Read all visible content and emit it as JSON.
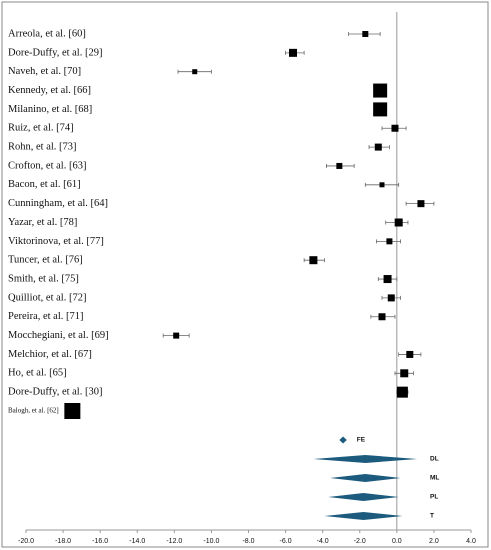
{
  "chart_data": {
    "type": "forest",
    "categories": [
      "Arreola, et al. [60]",
      "Dore-Duffy, et al. [29]",
      "Naveh, et al. [70]",
      "Kennedy, et al. [66]",
      "Milanino, et al. [68]",
      "Ruiz, et al. [74]",
      "Rohn, et al. [73]",
      "Crofton, et al. [63]",
      "Bacon, et al. [61]",
      "Cunningham, et al. [64]",
      "Yazar, et al. [78]",
      "Viktorinova, et al. [77]",
      "Tuncer, et al. [76]",
      "Smith, et al. [75]",
      "Quilliot, et al. [72]",
      "Pereira, et al. [71]",
      "Mocchegiani, et al. [69]",
      "Melchior, et al. [67]",
      "Ho, et al. [65]",
      "Dore-Duffy, et al. [30]",
      "Balogh, et al. [62]"
    ],
    "values": [
      -1.7,
      -5.6,
      -10.9,
      -0.9,
      -0.9,
      -0.1,
      -1.0,
      -3.1,
      -0.8,
      1.3,
      0.1,
      -0.4,
      -4.5,
      -0.5,
      -0.3,
      -0.8,
      -11.9,
      0.7,
      0.4,
      0.3,
      -17.5
    ],
    "lower": [
      -2.6,
      -6.0,
      -11.8,
      -1.2,
      -1.2,
      -0.8,
      -1.5,
      -3.8,
      -1.7,
      0.5,
      -0.6,
      -1.1,
      -5.0,
      -1.0,
      -0.8,
      -1.4,
      -12.6,
      0.1,
      -0.1,
      0.0,
      null
    ],
    "upper": [
      -0.9,
      -5.0,
      -10.0,
      -0.6,
      -0.6,
      0.5,
      -0.4,
      -2.3,
      0.1,
      2.0,
      0.6,
      0.2,
      -3.9,
      0.0,
      0.2,
      -0.1,
      -11.2,
      1.3,
      0.9,
      0.6,
      null
    ],
    "weights": [
      6,
      8,
      5,
      14,
      14,
      7,
      7,
      6,
      5,
      7,
      8,
      6,
      8,
      8,
      7,
      7,
      6,
      7,
      8,
      11,
      16
    ],
    "color": "#000000",
    "pooled": {
      "names": [
        "FE",
        "DL",
        "ML",
        "PL",
        "T"
      ],
      "values": [
        -2.9,
        -1.7,
        -1.7,
        -1.8,
        -1.8
      ],
      "lower": [
        -3.1,
        -4.5,
        -3.6,
        -3.7,
        -3.9
      ],
      "upper": [
        -2.7,
        1.1,
        0.2,
        0.1,
        0.3
      ],
      "color": "#1d5b7e"
    },
    "xlim": [
      -20,
      4
    ],
    "xticks": [
      {
        "value": -20,
        "label": "-20.0"
      },
      {
        "value": -18,
        "label": "-18.0"
      },
      {
        "value": -16,
        "label": "-16.0"
      },
      {
        "value": -14,
        "label": "-14.0"
      },
      {
        "value": -12,
        "label": "-12.0"
      },
      {
        "value": -10,
        "label": "-10.0"
      },
      {
        "value": -8,
        "label": "-8.0"
      },
      {
        "value": -6,
        "label": "-6.0"
      },
      {
        "value": -4,
        "label": "-4.0"
      },
      {
        "value": -2,
        "label": "-2.0"
      },
      {
        "value": 0,
        "label": "0.0"
      },
      {
        "value": 2,
        "label": "2.0"
      },
      {
        "value": 4,
        "label": "4.0"
      }
    ]
  }
}
